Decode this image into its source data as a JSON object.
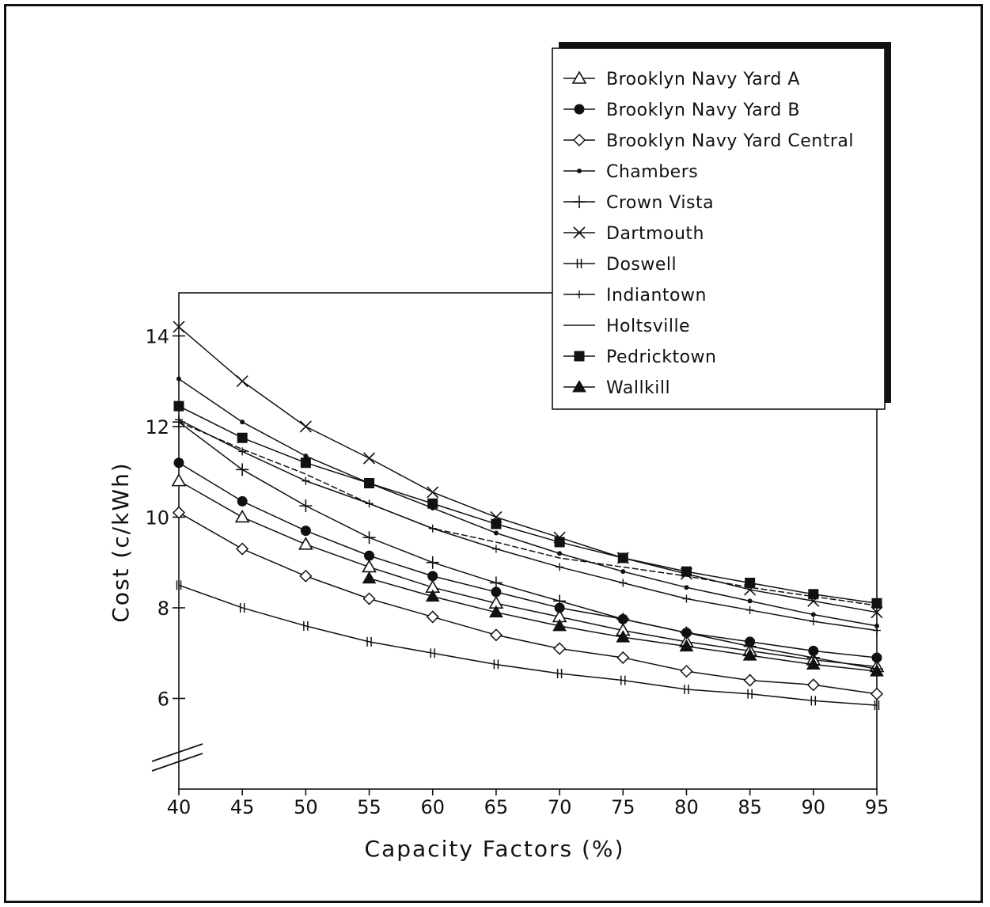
{
  "chart_data": {
    "type": "line",
    "title": "",
    "xlabel": "Capacity Factors (%)",
    "ylabel": "Cost (c/kWh)",
    "x": [
      40,
      45,
      50,
      55,
      60,
      65,
      70,
      75,
      80,
      85,
      90,
      95
    ],
    "xlim": [
      40,
      95
    ],
    "ylim": [
      4,
      15
    ],
    "y_tick_values": [
      6,
      8,
      10,
      12,
      14
    ],
    "y_tick_labels": [
      "6",
      "8",
      "10",
      "12",
      "14"
    ],
    "x_tick_labels": [
      "40",
      "45",
      "50",
      "55",
      "60",
      "65",
      "70",
      "75",
      "80",
      "85",
      "90",
      "95"
    ],
    "axis_break": true,
    "grid": false,
    "legend_position": "top-right",
    "series": [
      {
        "name": "Brooklyn Navy Yard A",
        "marker": "triangle-open",
        "values": [
          10.8,
          10.0,
          9.4,
          8.9,
          8.45,
          8.1,
          7.8,
          7.5,
          7.25,
          7.05,
          6.85,
          6.7
        ]
      },
      {
        "name": "Brooklyn Navy Yard B",
        "marker": "circle-filled",
        "values": [
          11.2,
          10.35,
          9.7,
          9.15,
          8.7,
          8.35,
          8.0,
          7.75,
          7.45,
          7.25,
          7.05,
          6.9
        ]
      },
      {
        "name": "Brooklyn Navy Yard Central",
        "marker": "diamond-open",
        "values": [
          10.1,
          9.3,
          8.7,
          8.2,
          7.8,
          7.4,
          7.1,
          6.9,
          6.6,
          6.4,
          6.3,
          6.1
        ]
      },
      {
        "name": "Chambers",
        "marker": "dot",
        "values": [
          13.05,
          12.1,
          11.35,
          10.75,
          10.2,
          9.65,
          9.2,
          8.8,
          8.45,
          8.15,
          7.85,
          7.6
        ]
      },
      {
        "name": "Crown Vista",
        "marker": "plus",
        "values": [
          12.1,
          11.05,
          10.25,
          9.55,
          9.0,
          8.55,
          8.15,
          7.75,
          7.45,
          7.15,
          6.9,
          6.65
        ]
      },
      {
        "name": "Dartmouth",
        "marker": "x",
        "values": [
          14.2,
          13.0,
          12.0,
          11.3,
          10.55,
          10.0,
          9.55,
          9.1,
          8.75,
          8.4,
          8.15,
          7.9
        ]
      },
      {
        "name": "Doswell",
        "marker": "double-bar",
        "values": [
          8.5,
          8.0,
          7.6,
          7.25,
          7.0,
          6.75,
          6.55,
          6.4,
          6.2,
          6.1,
          5.95,
          5.85
        ]
      },
      {
        "name": "Indiantown",
        "marker": "small-plus",
        "values": [
          12.15,
          11.45,
          10.8,
          10.3,
          9.75,
          9.3,
          8.9,
          8.55,
          8.2,
          7.95,
          7.7,
          7.5
        ]
      },
      {
        "name": "Holtsville",
        "marker": "none",
        "values": [
          12.1,
          11.5,
          10.95,
          10.3,
          9.75,
          9.45,
          9.1,
          8.9,
          8.7,
          8.45,
          8.25,
          8.05
        ]
      },
      {
        "name": "Pedricktown",
        "marker": "square-filled",
        "values": [
          12.45,
          11.75,
          11.2,
          10.75,
          10.3,
          9.85,
          9.45,
          9.1,
          8.8,
          8.55,
          8.3,
          8.1
        ]
      },
      {
        "name": "Wallkill",
        "marker": "triangle-filled",
        "values": [
          null,
          null,
          null,
          8.65,
          8.25,
          7.9,
          7.6,
          7.35,
          7.15,
          6.95,
          6.75,
          6.6
        ]
      }
    ]
  }
}
